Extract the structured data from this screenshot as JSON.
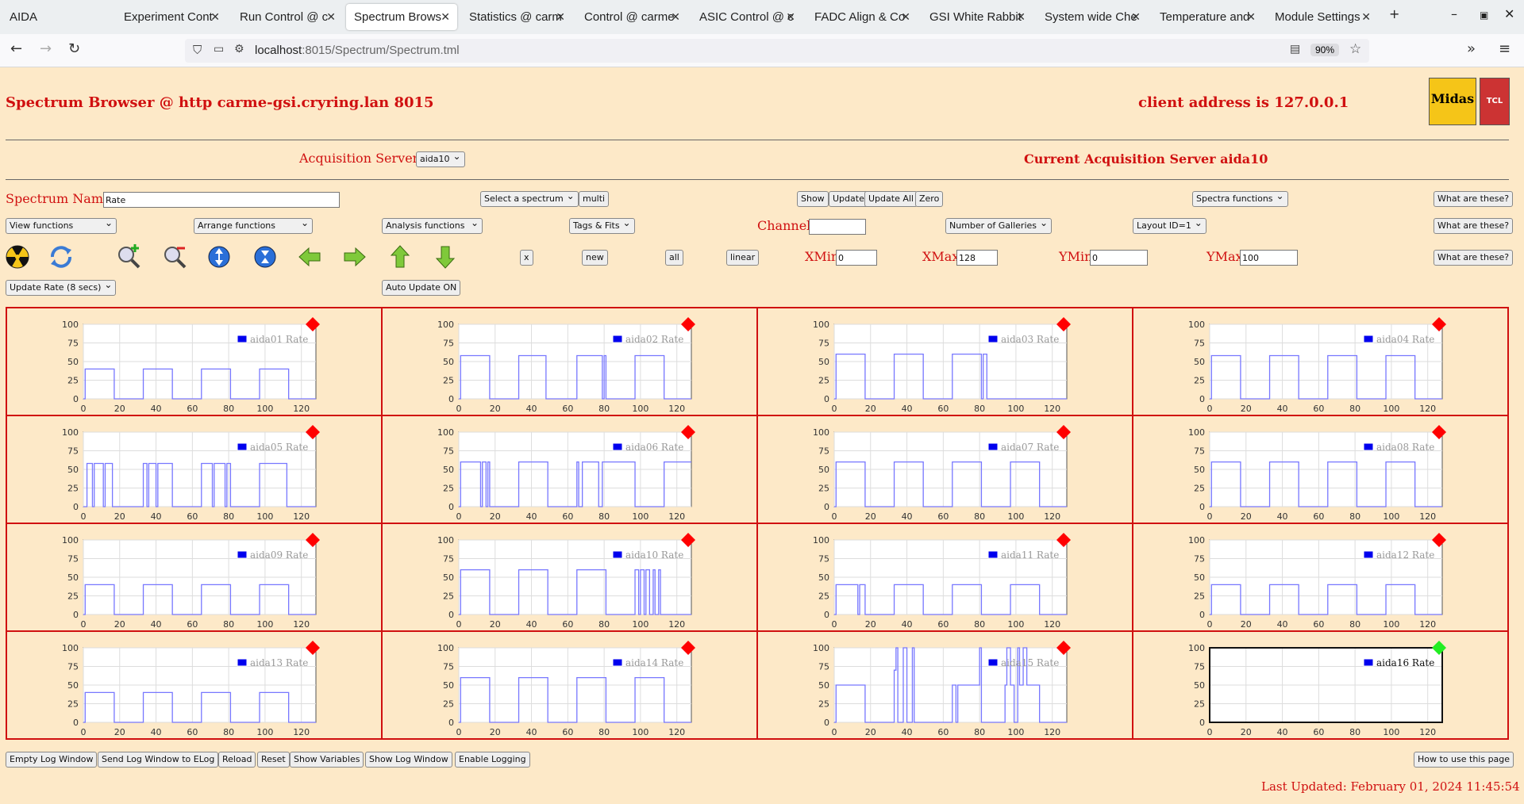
{
  "browser": {
    "tabs": [
      "AIDA",
      "Experiment Cont",
      "Run Control @ c",
      "Spectrum Brows",
      "Statistics @ carm",
      "Control @ carme",
      "ASIC Control @ c",
      "FADC Align & Co",
      "GSI White Rabbit",
      "System wide Che",
      "Temperature and",
      "Module Settings"
    ],
    "active_tab": 3,
    "url_host": "localhost",
    "url_path": ":8015/Spectrum/Spectrum.tml",
    "zoom": "90%"
  },
  "header": {
    "title": "Spectrum Browser @ http carme-gsi.cryring.lan 8015",
    "client": "client address is 127.0.0.1",
    "midas_logo": "Midas",
    "tcl_logo": "TCL"
  },
  "acq": {
    "label": "Acquisition Servers",
    "server_select": "aida10",
    "current": "Current Acquisition Server aida10"
  },
  "controls": {
    "spectrum_name_label": "Spectrum Name:",
    "spectrum_name_value": "Rate",
    "select_spectrum": "Select a spectrum",
    "multi": "multi",
    "show": "Show",
    "update": "Update",
    "update_all": "Update All",
    "zero": "Zero",
    "spectra_functions": "Spectra functions",
    "what1": "What are these?",
    "view_functions": "View functions",
    "arrange_functions": "Arrange functions",
    "analysis_functions": "Analysis functions",
    "tags_fits": "Tags & Fits",
    "channel_label": "Channel:",
    "channel_value": "",
    "num_galleries": "Number of Galleries",
    "layout_id": "Layout ID=1",
    "what2": "What are these?",
    "x_btn": "x",
    "new_btn": "new",
    "all_btn": "all",
    "linear_btn": "linear",
    "xmin_label": "XMin",
    "xmin_value": "0",
    "xmax_label": "XMax",
    "xmax_value": "128",
    "ymin_label": "YMin",
    "ymin_value": "0",
    "ymax_label": "YMax",
    "ymax_value": "100",
    "what3": "What are these?",
    "update_rate": "Update Rate (8 secs)",
    "auto_update": "Auto Update ON"
  },
  "toolbar_icons": [
    "radiation-icon",
    "refresh-icon",
    "zoom-in-icon",
    "zoom-out-icon",
    "expand-y-icon",
    "compress-y-icon",
    "arrow-left-icon",
    "arrow-right-icon",
    "arrow-up-icon",
    "arrow-down-icon"
  ],
  "chart_data": {
    "type": "line",
    "xlim": [
      0,
      128
    ],
    "ylim": [
      0,
      100
    ],
    "x_ticks": [
      "0",
      "20",
      "40",
      "60",
      "80",
      "100",
      "120"
    ],
    "y_ticks": [
      "0",
      "25",
      "50",
      "75",
      "100"
    ],
    "grid": true,
    "legend_placement": "top-right",
    "series": [
      {
        "name": "aida01 Rate",
        "status": "red",
        "x": [
          0,
          1,
          1,
          17,
          17,
          33,
          33,
          49,
          49,
          65,
          65,
          81,
          81,
          97,
          97,
          113,
          113,
          128
        ],
        "y": [
          0,
          0,
          40,
          40,
          0,
          0,
          40,
          40,
          0,
          0,
          40,
          40,
          0,
          0,
          40,
          40,
          0,
          0
        ]
      },
      {
        "name": "aida02 Rate",
        "status": "red",
        "x": [
          0,
          1,
          1,
          17,
          17,
          33,
          33,
          48,
          48,
          65,
          65,
          79,
          79,
          80,
          80,
          81,
          81,
          97,
          97,
          113,
          113,
          128
        ],
        "y": [
          0,
          0,
          58,
          58,
          0,
          0,
          58,
          58,
          0,
          0,
          58,
          58,
          0,
          0,
          58,
          58,
          0,
          0,
          58,
          58,
          0,
          0
        ]
      },
      {
        "name": "aida03 Rate",
        "status": "red",
        "x": [
          0,
          1,
          1,
          17,
          17,
          33,
          33,
          49,
          49,
          65,
          65,
          81,
          81,
          82,
          82,
          84,
          84,
          97,
          97,
          128
        ],
        "y": [
          0,
          0,
          60,
          60,
          0,
          0,
          60,
          60,
          0,
          0,
          60,
          60,
          0,
          0,
          60,
          60,
          0,
          0,
          0,
          0
        ]
      },
      {
        "name": "aida04 Rate",
        "status": "red",
        "x": [
          0,
          1,
          1,
          17,
          17,
          33,
          33,
          49,
          49,
          65,
          65,
          81,
          81,
          97,
          97,
          113,
          113,
          128
        ],
        "y": [
          0,
          0,
          58,
          58,
          0,
          0,
          58,
          58,
          0,
          0,
          58,
          58,
          0,
          0,
          58,
          58,
          0,
          0
        ]
      },
      {
        "name": "aida05 Rate",
        "status": "red",
        "x": [
          0,
          2,
          2,
          5,
          5,
          6,
          6,
          11,
          11,
          12,
          12,
          16,
          16,
          33,
          33,
          35,
          35,
          36,
          36,
          40,
          40,
          41,
          41,
          49,
          49,
          65,
          65,
          71,
          71,
          72,
          72,
          78,
          78,
          79,
          79,
          81,
          81,
          97,
          97,
          112,
          112,
          128
        ],
        "y": [
          0,
          0,
          58,
          58,
          0,
          0,
          58,
          58,
          0,
          0,
          58,
          58,
          0,
          0,
          58,
          58,
          0,
          0,
          58,
          58,
          0,
          0,
          58,
          58,
          0,
          0,
          58,
          58,
          0,
          0,
          58,
          58,
          0,
          0,
          58,
          58,
          0,
          0,
          58,
          58,
          0,
          0
        ]
      },
      {
        "name": "aida06 Rate",
        "status": "red",
        "x": [
          0,
          1,
          1,
          12,
          12,
          13,
          13,
          15,
          15,
          16,
          16,
          17,
          17,
          33,
          33,
          49,
          49,
          65,
          65,
          66,
          66,
          68,
          68,
          77,
          77,
          79,
          79,
          97,
          97,
          113,
          113,
          128
        ],
        "y": [
          0,
          0,
          60,
          60,
          0,
          0,
          60,
          60,
          0,
          0,
          60,
          60,
          0,
          0,
          60,
          60,
          0,
          0,
          60,
          60,
          0,
          0,
          60,
          60,
          0,
          0,
          60,
          60,
          0,
          0,
          60,
          60
        ]
      },
      {
        "name": "aida07 Rate",
        "status": "red",
        "x": [
          0,
          1,
          1,
          17,
          17,
          33,
          33,
          49,
          49,
          65,
          65,
          81,
          81,
          97,
          97,
          113,
          113,
          128
        ],
        "y": [
          0,
          0,
          60,
          60,
          0,
          0,
          60,
          60,
          0,
          0,
          60,
          60,
          0,
          0,
          60,
          60,
          0,
          0
        ]
      },
      {
        "name": "aida08 Rate",
        "status": "red",
        "x": [
          0,
          1,
          1,
          17,
          17,
          33,
          33,
          49,
          49,
          65,
          65,
          81,
          81,
          97,
          97,
          113,
          113,
          128
        ],
        "y": [
          0,
          0,
          60,
          60,
          0,
          0,
          60,
          60,
          0,
          0,
          60,
          60,
          0,
          0,
          60,
          60,
          0,
          0
        ]
      },
      {
        "name": "aida09 Rate",
        "status": "red",
        "x": [
          0,
          1,
          1,
          17,
          17,
          33,
          33,
          49,
          49,
          65,
          65,
          81,
          81,
          97,
          97,
          113,
          113,
          128
        ],
        "y": [
          0,
          0,
          40,
          40,
          0,
          0,
          40,
          40,
          0,
          0,
          40,
          40,
          0,
          0,
          40,
          40,
          0,
          0
        ]
      },
      {
        "name": "aida10 Rate",
        "status": "red",
        "x": [
          0,
          1,
          1,
          17,
          17,
          33,
          33,
          49,
          49,
          65,
          65,
          81,
          81,
          97,
          97,
          99,
          99,
          100,
          100,
          102,
          102,
          103,
          103,
          105,
          105,
          107,
          107,
          108,
          108,
          110,
          110,
          111,
          111,
          128
        ],
        "y": [
          0,
          0,
          60,
          60,
          0,
          0,
          60,
          60,
          0,
          0,
          60,
          60,
          0,
          0,
          60,
          60,
          0,
          0,
          60,
          60,
          0,
          0,
          60,
          60,
          0,
          0,
          60,
          60,
          0,
          0,
          60,
          60,
          0,
          0
        ]
      },
      {
        "name": "aida11 Rate",
        "status": "red",
        "x": [
          0,
          1,
          1,
          13,
          13,
          14,
          14,
          17,
          17,
          33,
          33,
          49,
          49,
          65,
          65,
          81,
          81,
          97,
          97,
          113,
          113,
          128
        ],
        "y": [
          0,
          0,
          40,
          40,
          0,
          0,
          40,
          40,
          0,
          0,
          40,
          40,
          0,
          0,
          40,
          40,
          0,
          0,
          40,
          40,
          0,
          0
        ]
      },
      {
        "name": "aida12 Rate",
        "status": "red",
        "x": [
          0,
          1,
          1,
          17,
          17,
          33,
          33,
          49,
          49,
          65,
          65,
          81,
          81,
          97,
          97,
          113,
          113,
          128
        ],
        "y": [
          0,
          0,
          40,
          40,
          0,
          0,
          40,
          40,
          0,
          0,
          40,
          40,
          0,
          0,
          40,
          40,
          0,
          0
        ]
      },
      {
        "name": "aida13 Rate",
        "status": "red",
        "x": [
          0,
          1,
          1,
          17,
          17,
          33,
          33,
          49,
          49,
          65,
          65,
          81,
          81,
          97,
          97,
          113,
          113,
          128
        ],
        "y": [
          0,
          0,
          40,
          40,
          0,
          0,
          40,
          40,
          0,
          0,
          40,
          40,
          0,
          0,
          40,
          40,
          0,
          0
        ]
      },
      {
        "name": "aida14 Rate",
        "status": "red",
        "x": [
          0,
          1,
          1,
          17,
          17,
          33,
          33,
          49,
          49,
          65,
          65,
          81,
          81,
          97,
          97,
          113,
          113,
          128
        ],
        "y": [
          0,
          0,
          60,
          60,
          0,
          0,
          60,
          60,
          0,
          0,
          60,
          60,
          0,
          0,
          60,
          60,
          0,
          0
        ]
      },
      {
        "name": "aida15 Rate",
        "status": "red",
        "x": [
          0,
          1,
          1,
          17,
          17,
          33,
          33,
          34,
          34,
          35,
          35,
          38,
          38,
          40,
          40,
          43,
          43,
          44,
          44,
          46,
          46,
          65,
          65,
          67,
          67,
          68,
          68,
          80,
          80,
          81,
          81,
          94,
          94,
          95,
          95,
          97,
          97,
          99,
          99,
          101,
          101,
          102,
          102,
          104,
          104,
          106,
          106,
          113,
          113,
          128
        ],
        "y": [
          0,
          0,
          50,
          50,
          0,
          0,
          70,
          70,
          100,
          100,
          0,
          0,
          100,
          100,
          0,
          0,
          100,
          100,
          0,
          0,
          0,
          0,
          50,
          50,
          0,
          0,
          50,
          50,
          100,
          100,
          0,
          0,
          50,
          50,
          100,
          100,
          50,
          50,
          0,
          0,
          100,
          100,
          50,
          50,
          100,
          100,
          50,
          50,
          0,
          0
        ]
      },
      {
        "name": "aida16 Rate",
        "status": "green",
        "x": [
          0,
          128
        ],
        "y": [
          0,
          0
        ]
      }
    ]
  },
  "footer": {
    "empty_log": "Empty Log Window",
    "send_log": "Send Log Window to ELog",
    "reload": "Reload",
    "reset": "Reset",
    "show_vars": "Show Variables",
    "show_log": "Show Log Window",
    "enable_logging": "Enable Logging",
    "how_to": "How to use this page",
    "last_updated": "Last Updated: February 01, 2024 11:45:54"
  },
  "colors": {
    "background": "#fde9c8",
    "accent_red": "#d01010",
    "plot_line": "#7777ff",
    "legend_box": "#0000ee",
    "status_red": "#ff0000",
    "status_green": "#22ee22"
  }
}
